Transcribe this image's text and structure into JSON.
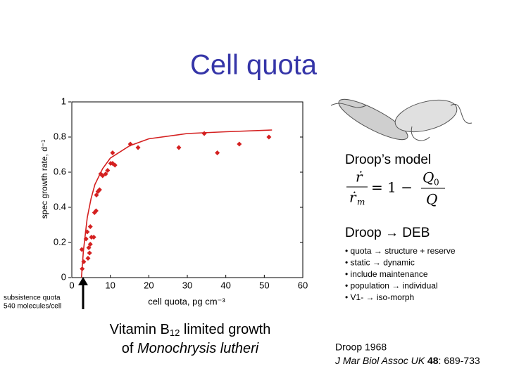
{
  "title": "Cell quota",
  "chart_data": {
    "type": "scatter",
    "xlabel": "cell quota, pg cm⁻³",
    "ylabel": "spec growth rate, d⁻¹",
    "xlim": [
      0,
      60
    ],
    "xticks": [
      0,
      10,
      20,
      30,
      40,
      50,
      60
    ],
    "ylim": [
      0,
      1
    ],
    "yticks": [
      0,
      0.2,
      0.4,
      0.6,
      0.8,
      1
    ],
    "series": [
      {
        "color": "#d42020",
        "x": [
          2.7,
          3.1,
          2.6,
          3.7,
          4.0,
          4.4,
          4.8,
          4.6,
          4.2,
          5.1,
          5.7,
          4.8,
          5.9,
          6.3,
          6.4,
          6.8,
          7.2,
          7.5,
          8.0,
          8.8,
          9.3,
          10.1,
          10.6,
          10.6,
          11.2,
          15.2,
          17.2,
          27.8,
          34.4,
          37.8,
          43.5,
          51.2
        ],
        "values": [
          0.05,
          0.09,
          0.16,
          0.22,
          0.26,
          0.17,
          0.19,
          0.14,
          0.11,
          0.23,
          0.23,
          0.29,
          0.37,
          0.38,
          0.47,
          0.49,
          0.5,
          0.59,
          0.58,
          0.59,
          0.61,
          0.65,
          0.65,
          0.71,
          0.64,
          0.76,
          0.74,
          0.74,
          0.82,
          0.71,
          0.76,
          0.8
        ]
      },
      {
        "type": "line",
        "color": "#d42020",
        "x": [
          2.5,
          3,
          4,
          5,
          6,
          8,
          10,
          15,
          20,
          30,
          40,
          52
        ],
        "values": [
          0,
          0.15,
          0.34,
          0.45,
          0.53,
          0.62,
          0.68,
          0.75,
          0.79,
          0.82,
          0.83,
          0.84
        ]
      }
    ]
  },
  "subsistence": [
    "subsistence quota",
    "540 molecules/cell"
  ],
  "caption": {
    "line1": [
      "Vitamin B",
      "12",
      " limited growth"
    ],
    "line2": [
      "of ",
      "Monochrysis lutheri"
    ]
  },
  "droop_model": {
    "heading": "Droop’s model",
    "r_dot": "ṙ",
    "m": "m",
    "equals_one_minus": "= 1 −",
    "Q": "Q",
    "zero": "0"
  },
  "deb": {
    "heading": "Droop → DEB",
    "bullets": [
      "• quota → structure + reserve",
      "• static → dynamic",
      "• include maintenance",
      "• population → individual",
      "• V1- → iso-morph"
    ]
  },
  "reference": {
    "line1": "Droop 1968",
    "journal": "J Mar Biol Assoc UK",
    "volume": "48",
    "pages": ": 689-733"
  }
}
